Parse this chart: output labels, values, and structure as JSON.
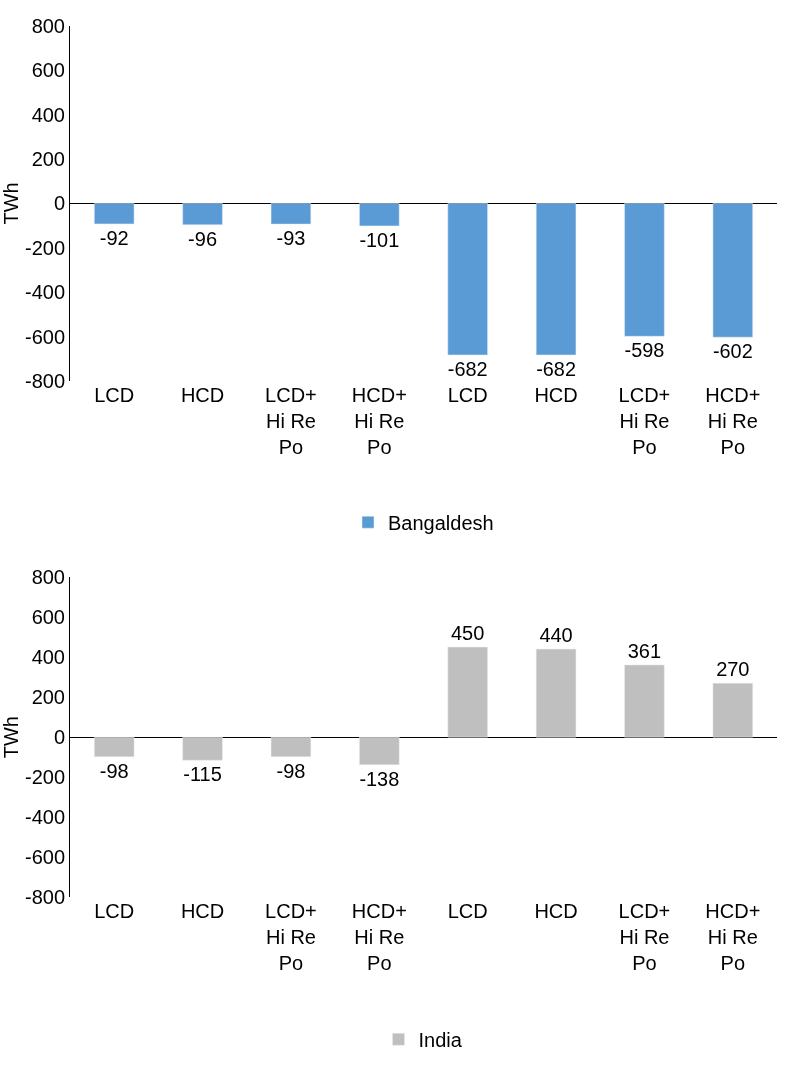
{
  "chart_data": [
    {
      "type": "bar",
      "ylabel": "TWh",
      "categories": [
        "LCD",
        "HCD",
        "LCD+\nHi Re\nPo",
        "HCD+\nHi Re\nPo",
        "LCD",
        "HCD",
        "LCD+\nHi Re\nPo",
        "HCD+\nHi Re\nPo"
      ],
      "series": [
        {
          "name": "Bangaldesh",
          "color": "#5b9bd5",
          "values": [
            -92,
            -96,
            -93,
            -101,
            -682,
            -682,
            -598,
            -602
          ]
        }
      ],
      "ylim": [
        -800,
        800
      ],
      "yticks": [
        -800,
        -600,
        -400,
        -200,
        0,
        200,
        400,
        600,
        800
      ],
      "data_labels": true,
      "legend": "bottom"
    },
    {
      "type": "bar",
      "ylabel": "TWh",
      "categories": [
        "LCD",
        "HCD",
        "LCD+\nHi Re\nPo",
        "HCD+\nHi Re\nPo",
        "LCD",
        "HCD",
        "LCD+\nHi Re\nPo",
        "HCD+\nHi Re\nPo"
      ],
      "series": [
        {
          "name": "India",
          "color": "#bfbfbf",
          "values": [
            -98,
            -115,
            -98,
            -138,
            450,
            440,
            361,
            270
          ]
        }
      ],
      "ylim": [
        -800,
        800
      ],
      "yticks": [
        -800,
        -600,
        -400,
        -200,
        0,
        200,
        400,
        600,
        800
      ],
      "data_labels": true,
      "legend": "bottom"
    }
  ]
}
